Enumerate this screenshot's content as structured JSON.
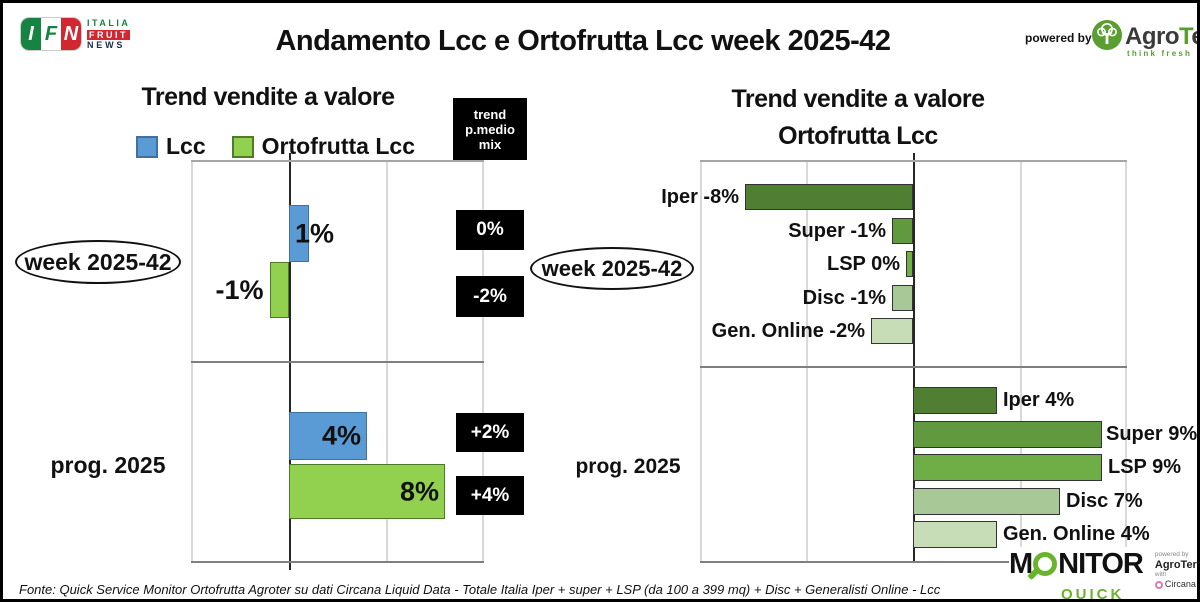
{
  "ui": {
    "page_title": "Andamento Lcc e Ortofrutta Lcc week 2025-42",
    "ifn_logo": {
      "i": "I",
      "f": "F",
      "n": "N",
      "italia": "ITALIA",
      "fruit": "FRUIT",
      "news": "NEWS"
    },
    "powered_by": "powered by",
    "agroter_name_agro": "Agro",
    "agroter_name_t": "T",
    "agroter_name_er": "er",
    "agroter_tagline": "think fresh",
    "left_title": "Trend vendite a valore",
    "right_title_line1": "Trend vendite a valore",
    "right_title_line2": "Ortofrutta Lcc",
    "trend_box_line1": "trend",
    "trend_box_line2": "p.medio",
    "trend_box_line3": "mix",
    "fonte": "Fonte: Quick Service Monitor Ortofrutta Agroter su dati Circana Liquid Data - Totale Italia Iper + super + LSP (da 100 a 399 mq) + Disc + Generalisti Online - Lcc",
    "monitor_logo": {
      "m": "M",
      "nitor": "NITOR",
      "quick": "QUICK",
      "powered_by": "powered by",
      "agroter": "AgroTer",
      "with": "with",
      "circana": "Circana"
    }
  },
  "colors": {
    "lcc_blue": "#5B9BD5",
    "ortofrutta_green": "#92D050",
    "channel_greens": [
      "#507E32",
      "#61993F",
      "#6FAD47",
      "#A9C897",
      "#C6DDB7"
    ],
    "annotation_box": "#000000",
    "agroter_green": "#5a9e32",
    "monitor_green": "#6ab42d",
    "ifn_green": "#168343",
    "ifn_red": "#d22730",
    "circana_pink": "#d67fa8"
  },
  "chart_data": [
    {
      "type": "bar",
      "orientation": "horizontal",
      "title": "Trend vendite a valore",
      "categories": [
        "week 2025-42",
        "prog. 2025"
      ],
      "series": [
        {
          "name": "Lcc",
          "color": "#5B9BD5",
          "values": [
            1,
            4
          ]
        },
        {
          "name": "Ortofrutta Lcc",
          "color": "#92D050",
          "values": [
            -1,
            8
          ]
        }
      ],
      "data_labels": [
        [
          "1%",
          "-1%"
        ],
        [
          "4%",
          "8%"
        ]
      ],
      "annotations": {
        "label": "trend p.medio mix",
        "values": [
          [
            "0%",
            "-2%"
          ],
          [
            "+2%",
            "+4%"
          ]
        ]
      },
      "xlim": [
        -5,
        10
      ],
      "grid": true,
      "legend_position": "top"
    },
    {
      "type": "bar",
      "orientation": "horizontal",
      "title": "Trend vendite a valore Ortofrutta Lcc",
      "categories": [
        "Iper",
        "Super",
        "LSP",
        "Disc",
        "Gen. Online"
      ],
      "bar_colors": [
        "#507E32",
        "#61993F",
        "#6FAD47",
        "#A9C897",
        "#C6DDB7"
      ],
      "groups": [
        {
          "name": "week 2025-42",
          "values": [
            -8,
            -1,
            0,
            -1,
            -2
          ],
          "labels": [
            "Iper -8%",
            "Super -1%",
            "LSP 0%",
            "Disc -1%",
            "Gen. Online -2%"
          ]
        },
        {
          "name": "prog. 2025",
          "values": [
            4,
            9,
            9,
            7,
            4
          ],
          "labels": [
            "Iper 4%",
            "Super 9%",
            "LSP 9%",
            "Disc 7%",
            "Gen. Online 4%"
          ]
        }
      ],
      "xlim": [
        -10,
        10
      ],
      "grid": true
    }
  ]
}
